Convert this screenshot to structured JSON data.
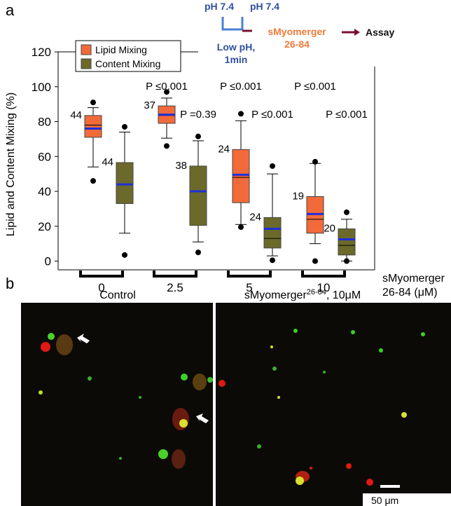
{
  "panel_labels": [
    "a",
    "b"
  ],
  "inset": {
    "ph_left": "pH 7.4",
    "ph_right": "pH 7.4",
    "low_ph": [
      "Low pH,",
      "1min"
    ],
    "protein": [
      "sMyomerger",
      "26-84"
    ],
    "assay": "Assay"
  },
  "images": {
    "left_title": "Control",
    "right_title": {
      "base": "sMyomerger",
      "sup": "26-84",
      "rest": ", 10μM"
    },
    "scale_bar": "50 μm"
  },
  "chart_data": {
    "type": "box",
    "ylabel": "Lipid and Content Mixing (%)",
    "xlabel": [
      "sMyomerger",
      "26-84 (μM)"
    ],
    "categories": [
      "0",
      "2.5",
      "5",
      "10"
    ],
    "ylim": [
      -5,
      120
    ],
    "yticks": [
      0,
      20,
      40,
      60,
      80,
      100,
      120
    ],
    "legend": "upper left",
    "mean_color": "#1f2fd6",
    "series": [
      {
        "name": "Lipid Mixing",
        "color": "#f26a3a",
        "p_values": [
          null,
          "P ≤0.001",
          "P ≤0.001",
          "P ≤0.001"
        ],
        "boxes": [
          {
            "n": "44",
            "whislo": 54,
            "q1": 71,
            "median": 78,
            "q3": 83.5,
            "whishi": 88,
            "mean": 76,
            "outliers": [
              91,
              46
            ]
          },
          {
            "n": "37",
            "whislo": 70.5,
            "q1": 79,
            "median": 83.5,
            "q3": 89,
            "whishi": 93.5,
            "mean": 84,
            "outliers": [
              97,
              66
            ]
          },
          {
            "n": "24",
            "whislo": 21,
            "q1": 33.5,
            "median": 48,
            "q3": 64,
            "whishi": 80.5,
            "mean": 49.5,
            "outliers": [
              84.5,
              19.5
            ]
          },
          {
            "n": "19",
            "whislo": 10,
            "q1": 16,
            "median": 24,
            "q3": 37,
            "whishi": 56,
            "mean": 27,
            "outliers": [
              57,
              0
            ]
          }
        ]
      },
      {
        "name": "Content Mixing",
        "color": "#6b6a2b",
        "p_values": [
          null,
          "P =0.39",
          "P ≤0.001",
          "P ≤0.001"
        ],
        "boxes": [
          {
            "n": "44",
            "whislo": 16,
            "q1": 33,
            "median": 44,
            "q3": 56.5,
            "whishi": 74,
            "mean": 44,
            "outliers": [
              77,
              3.5
            ]
          },
          {
            "n": "38",
            "whislo": 11,
            "q1": 20.5,
            "median": 40,
            "q3": 54.5,
            "whishi": 69,
            "mean": 40,
            "outliers": [
              71.5,
              5
            ]
          },
          {
            "n": "24",
            "whislo": 3,
            "q1": 7.5,
            "median": 13,
            "q3": 25,
            "whishi": 50,
            "mean": 18.5,
            "outliers": [
              54.5,
              0.5
            ]
          },
          {
            "n": "20",
            "whislo": 0,
            "q1": 3.5,
            "median": 9,
            "q3": 18.5,
            "whishi": 24,
            "mean": 12.5,
            "outliers": [
              28,
              0
            ]
          }
        ]
      }
    ]
  }
}
